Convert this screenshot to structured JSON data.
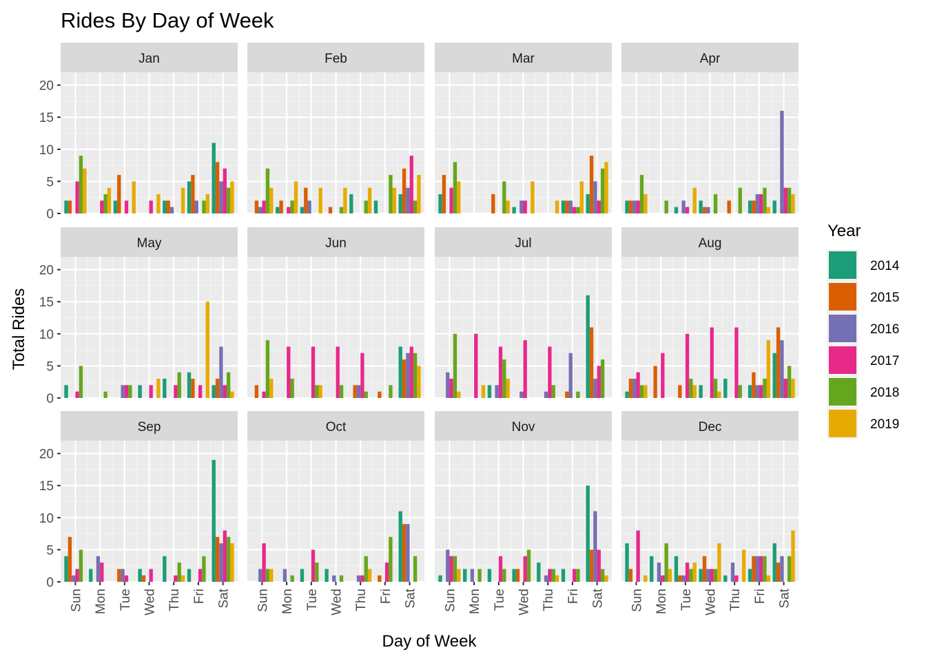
{
  "chart_data": {
    "type": "bar",
    "title": "Rides By Day of Week",
    "xlabel": "Day of Week",
    "ylabel": "Total Rides",
    "ylim": [
      0,
      22
    ],
    "y_ticks": [
      0,
      5,
      10,
      15,
      20
    ],
    "categories": [
      "Sun",
      "Mon",
      "Tue",
      "Wed",
      "Thu",
      "Fri",
      "Sat"
    ],
    "legend": {
      "title": "Year",
      "position": "right"
    },
    "grid": true,
    "series": [
      {
        "name": "2014",
        "color": "#1B9E77"
      },
      {
        "name": "2015",
        "color": "#D95F02"
      },
      {
        "name": "2016",
        "color": "#7570B3"
      },
      {
        "name": "2017",
        "color": "#E7298A"
      },
      {
        "name": "2018",
        "color": "#66A61E"
      },
      {
        "name": "2019",
        "color": "#E6AB02"
      }
    ],
    "facets": [
      {
        "label": "Jan",
        "values": {
          "Sun": [
            2,
            2,
            null,
            5,
            9,
            7
          ],
          "Mon": [
            null,
            null,
            null,
            2,
            3,
            4
          ],
          "Tue": [
            2,
            6,
            null,
            2,
            null,
            5
          ],
          "Wed": [
            null,
            null,
            null,
            2,
            null,
            3
          ],
          "Thu": [
            2,
            2,
            1,
            null,
            null,
            4
          ],
          "Fri": [
            5,
            6,
            2,
            null,
            2,
            3
          ],
          "Sat": [
            11,
            8,
            5,
            7,
            4,
            5
          ]
        }
      },
      {
        "label": "Feb",
        "values": {
          "Sun": [
            null,
            2,
            1,
            2,
            7,
            4
          ],
          "Mon": [
            1,
            2,
            null,
            1,
            2,
            5
          ],
          "Tue": [
            1,
            4,
            2,
            null,
            null,
            4
          ],
          "Wed": [
            null,
            1,
            null,
            null,
            1,
            4
          ],
          "Thu": [
            3,
            null,
            null,
            null,
            2,
            4
          ],
          "Fri": [
            2,
            null,
            null,
            null,
            6,
            4
          ],
          "Sat": [
            3,
            7,
            4,
            9,
            2,
            6
          ]
        }
      },
      {
        "label": "Mar",
        "values": {
          "Sun": [
            3,
            6,
            null,
            4,
            8,
            5
          ],
          "Mon": [
            null,
            null,
            null,
            null,
            null,
            null
          ],
          "Tue": [
            null,
            3,
            null,
            null,
            5,
            2
          ],
          "Wed": [
            1,
            null,
            2,
            2,
            null,
            5
          ],
          "Thu": [
            null,
            null,
            null,
            null,
            null,
            2
          ],
          "Fri": [
            2,
            2,
            2,
            1,
            1,
            5
          ],
          "Sat": [
            3,
            9,
            5,
            2,
            7,
            8
          ]
        }
      },
      {
        "label": "Apr",
        "values": {
          "Sun": [
            2,
            2,
            2,
            2,
            6,
            3
          ],
          "Mon": [
            null,
            null,
            null,
            null,
            2,
            null
          ],
          "Tue": [
            1,
            null,
            2,
            1,
            null,
            4
          ],
          "Wed": [
            2,
            1,
            1,
            null,
            3,
            null
          ],
          "Thu": [
            null,
            2,
            null,
            null,
            4,
            null
          ],
          "Fri": [
            2,
            2,
            3,
            3,
            4,
            1
          ],
          "Sat": [
            2,
            null,
            16,
            4,
            4,
            3
          ]
        }
      },
      {
        "label": "May",
        "values": {
          "Sun": [
            2,
            null,
            null,
            1,
            5,
            null
          ],
          "Mon": [
            null,
            null,
            null,
            null,
            1,
            null
          ],
          "Tue": [
            null,
            null,
            2,
            2,
            2,
            null
          ],
          "Wed": [
            2,
            null,
            null,
            2,
            null,
            3
          ],
          "Thu": [
            3,
            null,
            null,
            2,
            4,
            null
          ],
          "Fri": [
            4,
            3,
            null,
            2,
            null,
            15
          ],
          "Sat": [
            2,
            3,
            8,
            2,
            4,
            1
          ]
        }
      },
      {
        "label": "Jun",
        "values": {
          "Sun": [
            null,
            2,
            null,
            1,
            9,
            3
          ],
          "Mon": [
            null,
            null,
            null,
            8,
            3,
            null
          ],
          "Tue": [
            null,
            null,
            null,
            8,
            2,
            2
          ],
          "Wed": [
            null,
            null,
            null,
            8,
            2,
            null
          ],
          "Thu": [
            null,
            2,
            2,
            7,
            1,
            null
          ],
          "Fri": [
            null,
            1,
            null,
            null,
            2,
            null
          ],
          "Sat": [
            8,
            6,
            7,
            8,
            7,
            5
          ]
        }
      },
      {
        "label": "Jul",
        "values": {
          "Sun": [
            null,
            null,
            4,
            3,
            10,
            1
          ],
          "Mon": [
            null,
            null,
            null,
            10,
            null,
            2
          ],
          "Tue": [
            2,
            null,
            2,
            8,
            6,
            3
          ],
          "Wed": [
            null,
            null,
            1,
            9,
            null,
            null
          ],
          "Thu": [
            null,
            null,
            1,
            8,
            2,
            null
          ],
          "Fri": [
            null,
            1,
            7,
            null,
            1,
            null
          ],
          "Sat": [
            16,
            11,
            3,
            5,
            6,
            null
          ]
        }
      },
      {
        "label": "Aug",
        "values": {
          "Sun": [
            1,
            3,
            3,
            4,
            2,
            2
          ],
          "Mon": [
            null,
            5,
            null,
            7,
            null,
            null
          ],
          "Tue": [
            null,
            2,
            null,
            10,
            3,
            2
          ],
          "Wed": [
            2,
            null,
            null,
            11,
            3,
            1
          ],
          "Thu": [
            3,
            null,
            null,
            11,
            2,
            null
          ],
          "Fri": [
            2,
            4,
            2,
            2,
            3,
            9
          ],
          "Sat": [
            7,
            11,
            9,
            3,
            5,
            3
          ]
        }
      },
      {
        "label": "Sep",
        "values": {
          "Sun": [
            4,
            7,
            1,
            2,
            5,
            null
          ],
          "Mon": [
            2,
            null,
            4,
            3,
            null,
            null
          ],
          "Tue": [
            null,
            2,
            2,
            1,
            null,
            null
          ],
          "Wed": [
            2,
            1,
            null,
            2,
            null,
            null
          ],
          "Thu": [
            4,
            null,
            null,
            1,
            3,
            1
          ],
          "Fri": [
            2,
            null,
            null,
            2,
            4,
            null
          ],
          "Sat": [
            19,
            7,
            6,
            8,
            7,
            6
          ]
        }
      },
      {
        "label": "Oct",
        "values": {
          "Sun": [
            null,
            null,
            2,
            6,
            2,
            2
          ],
          "Mon": [
            null,
            null,
            2,
            null,
            1,
            null
          ],
          "Tue": [
            2,
            null,
            null,
            5,
            3,
            null
          ],
          "Wed": [
            2,
            null,
            1,
            null,
            1,
            null
          ],
          "Thu": [
            null,
            null,
            1,
            1,
            4,
            2
          ],
          "Fri": [
            null,
            1,
            null,
            3,
            7,
            null
          ],
          "Sat": [
            11,
            9,
            9,
            null,
            4,
            null
          ]
        }
      },
      {
        "label": "Nov",
        "values": {
          "Sun": [
            1,
            null,
            5,
            4,
            4,
            2
          ],
          "Mon": [
            2,
            null,
            2,
            null,
            2,
            null
          ],
          "Tue": [
            2,
            null,
            null,
            4,
            2,
            null
          ],
          "Wed": [
            2,
            2,
            null,
            4,
            5,
            null
          ],
          "Thu": [
            3,
            null,
            1,
            2,
            2,
            1
          ],
          "Fri": [
            2,
            null,
            null,
            2,
            2,
            null
          ],
          "Sat": [
            15,
            5,
            11,
            5,
            2,
            1
          ]
        }
      },
      {
        "label": "Dec",
        "values": {
          "Sun": [
            6,
            2,
            null,
            8,
            null,
            1
          ],
          "Mon": [
            4,
            null,
            3,
            1,
            6,
            2
          ],
          "Tue": [
            4,
            1,
            1,
            3,
            2,
            3
          ],
          "Wed": [
            2,
            4,
            2,
            2,
            2,
            6
          ],
          "Thu": [
            1,
            null,
            3,
            1,
            null,
            5
          ],
          "Fri": [
            2,
            4,
            4,
            4,
            4,
            1
          ],
          "Sat": [
            6,
            3,
            4,
            null,
            4,
            8
          ]
        }
      }
    ]
  }
}
